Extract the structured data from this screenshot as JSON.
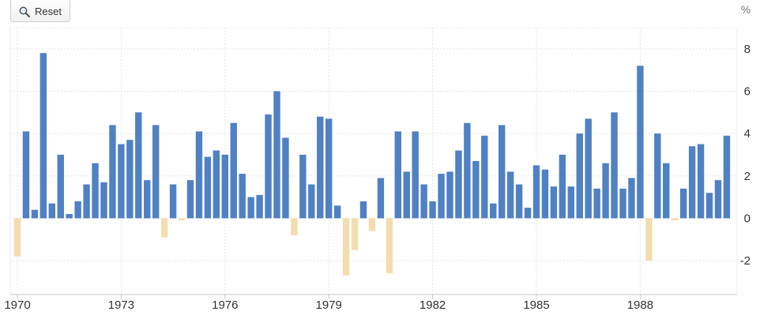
{
  "toolbar": {
    "reset_label": "Reset"
  },
  "chart_data": {
    "type": "bar",
    "title": "",
    "xlabel": "",
    "ylabel": "",
    "unit": "%",
    "ylim": [
      -3.6,
      9
    ],
    "yticks": [
      -2,
      0,
      2,
      4,
      6,
      8
    ],
    "yticks_labels": [
      "-2",
      "0",
      "2",
      "4",
      "6",
      "8"
    ],
    "xticks_labels": [
      "1970",
      "1973",
      "1976",
      "1979",
      "1982",
      "1985",
      "1988"
    ],
    "x_start": "1970-Q1",
    "x_frequency": "quarterly",
    "grid": true,
    "colors": {
      "positive": "#4f81c3",
      "negative": "#f3ddb0"
    },
    "values": [
      -1.8,
      4.1,
      0.4,
      7.8,
      0.7,
      3.0,
      0.2,
      0.8,
      1.6,
      2.6,
      1.7,
      4.4,
      3.5,
      3.7,
      5.0,
      1.8,
      4.4,
      -0.9,
      1.6,
      -0.1,
      1.8,
      4.1,
      2.9,
      3.2,
      3.0,
      4.5,
      2.1,
      1.0,
      1.1,
      4.9,
      6.0,
      3.8,
      -0.8,
      3.0,
      1.6,
      4.8,
      4.7,
      0.6,
      -2.7,
      -1.5,
      0.8,
      -0.6,
      1.9,
      -2.6,
      4.1,
      2.2,
      4.1,
      1.6,
      0.8,
      2.1,
      2.2,
      3.2,
      4.5,
      2.7,
      3.9,
      0.7,
      4.4,
      2.2,
      1.6,
      0.5,
      2.5,
      2.3,
      1.5,
      3.0,
      1.5,
      4.0,
      4.7,
      1.4,
      2.6,
      5.0,
      1.4,
      1.9,
      7.2,
      -2.0,
      4.0,
      2.6,
      -0.1,
      1.4,
      3.4,
      3.5,
      1.2,
      1.8,
      3.9
    ]
  }
}
